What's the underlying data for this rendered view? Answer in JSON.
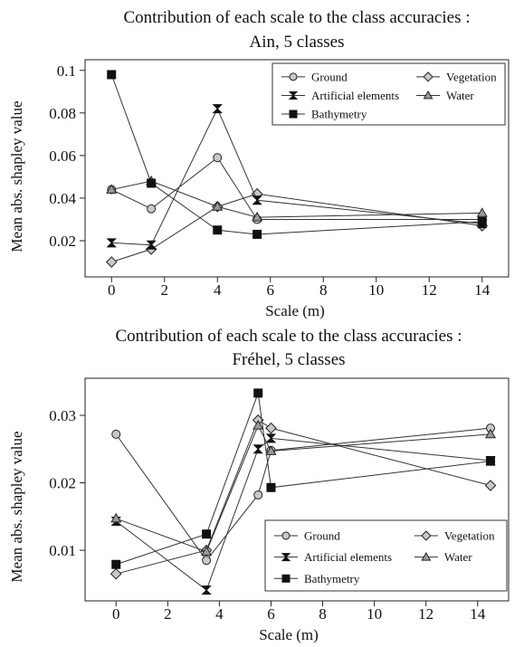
{
  "chart_data": [
    {
      "type": "line",
      "title": "Contribution of each scale to the class accuracies :",
      "subtitle": "Ain, 5 classes",
      "xlabel": "Scale (m)",
      "ylabel": "Mean abs. shapley value",
      "xlim": [
        -1,
        15
      ],
      "ylim": [
        0.003,
        0.105
      ],
      "xticks": [
        0,
        2,
        4,
        6,
        8,
        10,
        12,
        14
      ],
      "yticks": [
        0.02,
        0.04,
        0.06,
        0.08,
        0.1
      ],
      "ytick_labels": [
        "0.02",
        "0.04",
        "0.06",
        "0.08",
        "0.1"
      ],
      "legend_position": "top-right",
      "series": [
        {
          "name": "Ground",
          "marker": "circle",
          "x": [
            0,
            1.5,
            4,
            5.5,
            14
          ],
          "y": [
            0.044,
            0.035,
            0.059,
            0.03,
            0.03
          ]
        },
        {
          "name": "Vegetation",
          "marker": "diamond",
          "x": [
            0,
            1.5,
            4,
            5.5,
            14
          ],
          "y": [
            0.01,
            0.016,
            0.036,
            0.042,
            0.027
          ]
        },
        {
          "name": "Artificial elements",
          "marker": "bowtie",
          "x": [
            0,
            1.5,
            4,
            5.5,
            14
          ],
          "y": [
            0.019,
            0.018,
            0.082,
            0.039,
            0.028
          ]
        },
        {
          "name": "Water",
          "marker": "triangle",
          "x": [
            0,
            1.5,
            4,
            5.5,
            14
          ],
          "y": [
            0.044,
            0.048,
            0.036,
            0.031,
            0.033
          ]
        },
        {
          "name": "Bathymetry",
          "marker": "square",
          "x": [
            0,
            1.5,
            4,
            5.5,
            14
          ],
          "y": [
            0.098,
            0.047,
            0.025,
            0.023,
            0.029
          ]
        }
      ]
    },
    {
      "type": "line",
      "title": "Contribution of each scale to the class accuracies :",
      "subtitle": "Fréhel, 5 classes",
      "xlabel": "Scale (m)",
      "ylabel": "Mean abs. shapley value",
      "xlim": [
        -1.2,
        15.2
      ],
      "ylim": [
        0.0025,
        0.0355
      ],
      "xticks": [
        0,
        2,
        4,
        6,
        8,
        10,
        12,
        14
      ],
      "yticks": [
        0.01,
        0.02,
        0.03
      ],
      "ytick_labels": [
        "0.01",
        "0.02",
        "0.03"
      ],
      "legend_position": "bottom-right",
      "series": [
        {
          "name": "Ground",
          "marker": "circle",
          "x": [
            0,
            3.5,
            5.5,
            6,
            14.5
          ],
          "y": [
            0.0272,
            0.0085,
            0.0182,
            0.0248,
            0.0281
          ]
        },
        {
          "name": "Vegetation",
          "marker": "diamond",
          "x": [
            0,
            3.5,
            5.5,
            6,
            14.5
          ],
          "y": [
            0.0065,
            0.01,
            0.0293,
            0.0281,
            0.0196
          ]
        },
        {
          "name": "Artificial elements",
          "marker": "bowtie",
          "x": [
            0,
            3.5,
            5.5,
            6,
            14.5
          ],
          "y": [
            0.0143,
            0.0041,
            0.025,
            0.0266,
            0.0233
          ]
        },
        {
          "name": "Water",
          "marker": "triangle",
          "x": [
            0,
            3.5,
            5.5,
            6,
            14.5
          ],
          "y": [
            0.0147,
            0.0098,
            0.0285,
            0.0247,
            0.0272
          ]
        },
        {
          "name": "Bathymetry",
          "marker": "square",
          "x": [
            0,
            3.5,
            5.5,
            6,
            14.5
          ],
          "y": [
            0.0079,
            0.0124,
            0.0333,
            0.0193,
            0.0232
          ]
        }
      ]
    }
  ]
}
